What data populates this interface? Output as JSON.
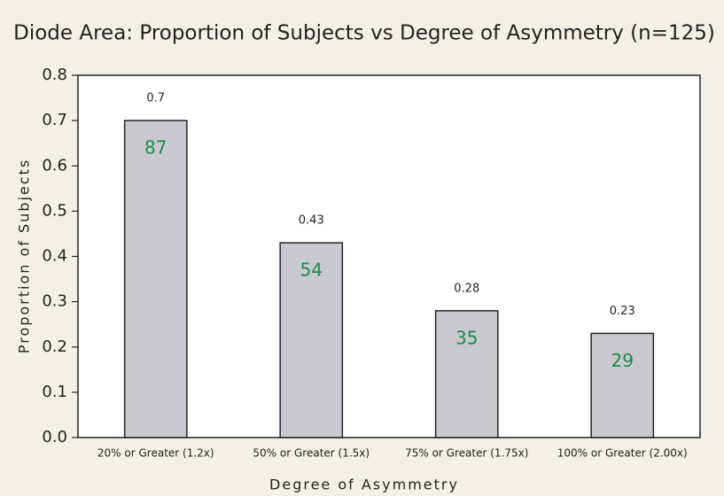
{
  "chart_data": {
    "type": "bar",
    "title": "Diode Area: Proportion of Subjects vs Degree of Asymmetry (n=125)",
    "x_label": "Degree of Asymmetry",
    "y_label": "Proportion of Subjects",
    "categories": [
      "20% or Greater (1.2x)",
      "50% or Greater (1.5x)",
      "75% or Greater (1.75x)",
      "100% or Greater (2.00x)"
    ],
    "values": [
      0.7,
      0.43,
      0.28,
      0.23
    ],
    "counts": [
      87,
      54,
      35,
      29
    ],
    "color": "#c8cacf",
    "count_color": "#1e8a4a",
    "ylim": [
      0,
      0.8
    ],
    "yticks": [
      {
        "value": 0,
        "label": "0.0"
      },
      0.1,
      0.2,
      0.3,
      0.4,
      0.5,
      0.6,
      0.7,
      0.8
    ],
    "grid": false
  }
}
